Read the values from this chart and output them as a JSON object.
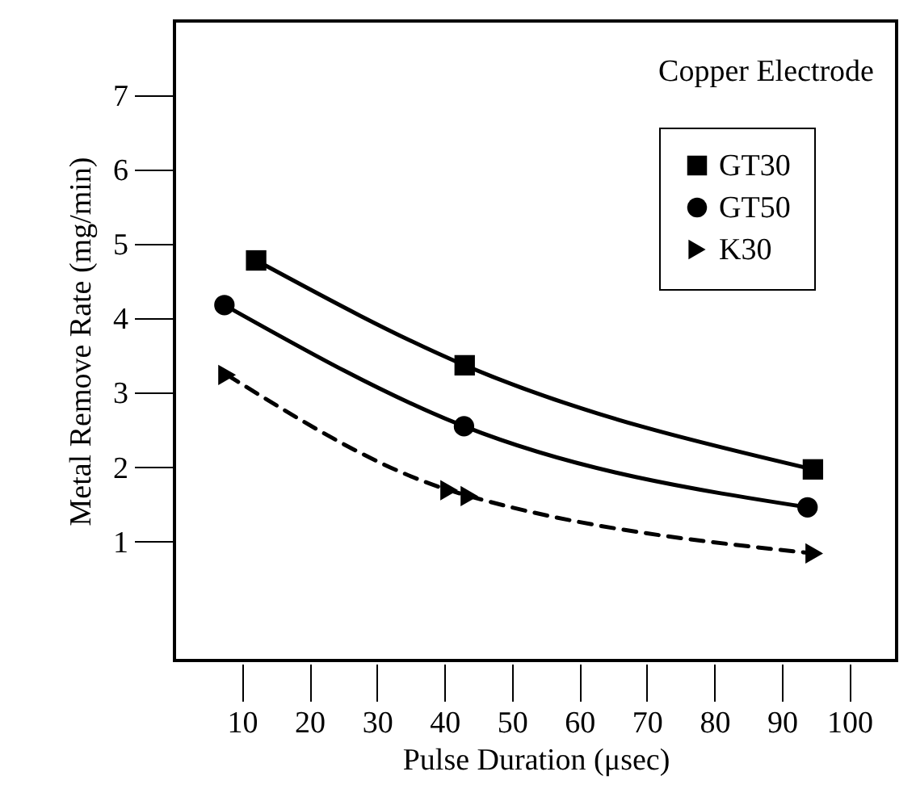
{
  "chart_data": {
    "type": "line",
    "xlabel": "Pulse Duration (μsec)",
    "ylabel": "Metal Remove Rate (mg/min)",
    "annotations": [
      "Copper Electrode"
    ],
    "xlim": [
      0,
      107
    ],
    "xticks": [
      10,
      20,
      30,
      40,
      50,
      60,
      70,
      80,
      90,
      100
    ],
    "ylim": [
      -0.6,
      8
    ],
    "yticks": [
      1,
      2,
      3,
      4,
      5,
      6,
      7
    ],
    "grid": false,
    "legend": "top right",
    "series": [
      {
        "name": "GT30",
        "color": "#000000",
        "marker": "square",
        "line_style": "solid",
        "x": [
          12.1,
          43.0,
          94.6
        ],
        "values": [
          4.78,
          3.37,
          1.97
        ]
      },
      {
        "name": "GT50",
        "color": "#000000",
        "marker": "circle",
        "line_style": "solid",
        "x": [
          7.4,
          42.9,
          93.8
        ],
        "values": [
          4.18,
          2.55,
          1.46
        ]
      },
      {
        "name": "K30",
        "color": "#000000",
        "marker": "triangle",
        "line_style": "dashed",
        "x": [
          7.8,
          40.7,
          43.7,
          94.8
        ],
        "values": [
          3.24,
          1.69,
          1.61,
          0.84
        ]
      }
    ]
  }
}
